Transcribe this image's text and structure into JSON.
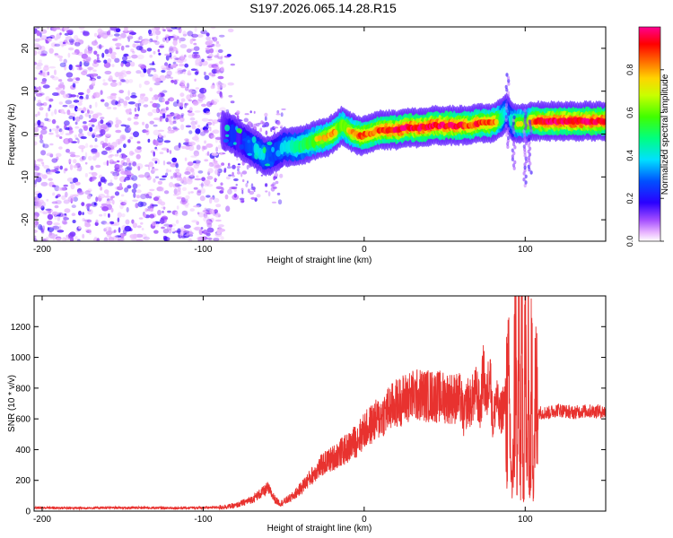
{
  "title": "S197.2026.065.14.28.R15",
  "chart_data": [
    {
      "type": "heatmap",
      "xlabel": "Height of straight line (km)",
      "ylabel": "Frequency (Hz)",
      "xlim": [
        -205,
        150
      ],
      "ylim": [
        -25,
        25
      ],
      "xticks": [
        -200,
        -100,
        0,
        100
      ],
      "yticks": [
        -20,
        -10,
        0,
        10,
        20
      ],
      "colorbar": {
        "label": "Normalized spectral amplitude",
        "range": [
          0,
          1
        ],
        "ticks": [
          "0.0",
          "0.2",
          "0.4",
          "0.6",
          "0.8"
        ]
      },
      "noise_region_x": [
        -205,
        -88
      ],
      "scatter_region_x": [
        -88,
        -50
      ],
      "ridge": {
        "x": [
          -88,
          -82,
          -78,
          -74,
          -70,
          -66,
          -62,
          -58,
          -54,
          -50,
          -46,
          -42,
          -38,
          -34,
          -30,
          -26,
          -22,
          -18,
          -14,
          -10,
          -6,
          -2,
          2,
          6,
          10,
          14,
          18,
          22,
          26,
          30,
          34,
          38,
          42,
          46,
          50,
          54,
          58,
          62,
          66,
          70,
          74,
          78,
          82,
          86,
          88,
          90,
          92,
          94,
          96,
          98,
          100,
          104,
          108,
          112,
          116,
          120,
          130,
          140,
          150
        ],
        "freq": [
          1,
          0,
          -1,
          -2,
          -3,
          -4,
          -5,
          -5,
          -4,
          -3,
          -3,
          -3,
          -2.5,
          -2,
          -1.5,
          -1,
          -0.5,
          0.5,
          2,
          1,
          0,
          -0.5,
          0,
          0.5,
          1,
          1,
          1,
          1,
          1.5,
          1.5,
          1.5,
          1.5,
          2,
          2,
          2,
          2,
          2,
          2,
          2,
          2.5,
          2.5,
          2.5,
          3,
          4,
          5,
          4,
          3,
          2.5,
          2.5,
          2.5,
          2.5,
          3,
          3,
          3,
          3,
          3,
          3,
          3,
          3
        ],
        "amplitude": [
          0.25,
          0.35,
          0.3,
          0.35,
          0.4,
          0.45,
          0.45,
          0.4,
          0.4,
          0.45,
          0.5,
          0.55,
          0.6,
          0.65,
          0.7,
          0.75,
          0.8,
          0.8,
          0.7,
          0.75,
          0.8,
          0.85,
          0.85,
          0.85,
          0.9,
          0.9,
          0.9,
          0.95,
          0.95,
          0.95,
          0.95,
          0.95,
          0.95,
          0.95,
          0.95,
          0.95,
          0.9,
          0.9,
          0.85,
          0.9,
          0.85,
          0.85,
          0.8,
          0.55,
          0.45,
          0.4,
          0.5,
          0.65,
          0.7,
          0.7,
          0.7,
          0.8,
          0.9,
          0.9,
          0.95,
          0.95,
          0.95,
          0.95,
          0.95
        ]
      }
    },
    {
      "type": "line",
      "xlabel": "Height of straight line (km)",
      "ylabel": "SNR (10 * v/v)",
      "xlim": [
        -205,
        150
      ],
      "ylim": [
        0,
        1400
      ],
      "xticks": [
        -200,
        -100,
        0,
        100
      ],
      "yticks": [
        0,
        200,
        400,
        600,
        800,
        1000,
        1200
      ],
      "series": [
        {
          "name": "SNR",
          "color": "#e8322f",
          "x": [
            -205,
            -180,
            -150,
            -120,
            -100,
            -90,
            -80,
            -75,
            -70,
            -65,
            -62,
            -60,
            -58,
            -55,
            -52,
            -50,
            -45,
            -40,
            -35,
            -30,
            -25,
            -20,
            -15,
            -10,
            -5,
            0,
            5,
            10,
            15,
            20,
            25,
            30,
            35,
            40,
            45,
            50,
            55,
            60,
            62,
            64,
            66,
            68,
            70,
            72,
            74,
            76,
            78,
            80,
            82,
            84,
            86,
            88,
            90,
            92,
            93,
            94,
            95,
            96,
            97,
            98,
            99,
            100,
            101,
            102,
            103,
            104,
            105,
            106,
            108,
            110,
            115,
            120,
            125,
            130,
            135,
            140,
            145,
            150
          ],
          "y": [
            22,
            20,
            22,
            20,
            22,
            25,
            35,
            55,
            75,
            110,
            130,
            150,
            120,
            70,
            50,
            60,
            90,
            140,
            200,
            260,
            310,
            340,
            380,
            410,
            460,
            520,
            570,
            610,
            660,
            700,
            730,
            750,
            755,
            750,
            745,
            740,
            735,
            730,
            600,
            720,
            700,
            740,
            780,
            650,
            900,
            700,
            950,
            550,
            760,
            600,
            680,
            720,
            680,
            100,
            600,
            1400,
            80,
            1350,
            150,
            1300,
            60,
            1380,
            200,
            1100,
            120,
            950,
            250,
            700,
            650,
            640,
            640,
            660,
            650,
            640,
            650,
            650,
            650,
            645
          ]
        }
      ]
    }
  ]
}
